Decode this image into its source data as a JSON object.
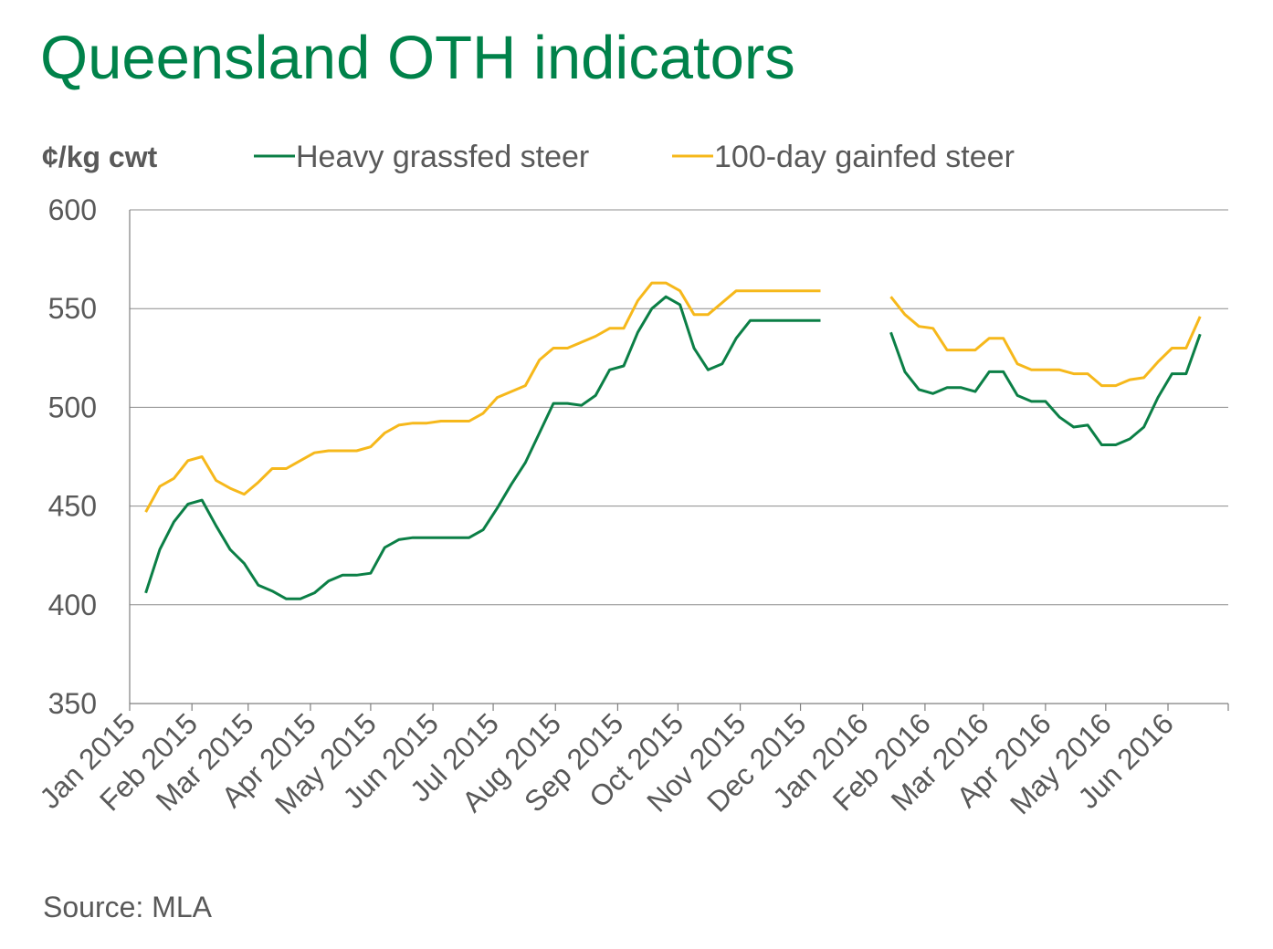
{
  "title": "Queensland OTH indicators",
  "source": "Source: MLA",
  "chart_data": {
    "type": "line",
    "ylabel": "¢/kg cwt",
    "ylim": [
      350,
      600
    ],
    "yticks": [
      350,
      400,
      450,
      500,
      550,
      600
    ],
    "grid": true,
    "legend_position": "top",
    "x_tick_labels": [
      "Jan 2015",
      "Feb 2015",
      "Mar 2015",
      "Apr 2015",
      "May 2015",
      "Jun 2015",
      "Jul 2015",
      "Aug 2015",
      "Sep 2015",
      "Oct 2015",
      "Nov 2015",
      "Dec 2015",
      "Jan 2016",
      "Feb 2016",
      "Mar 2016",
      "Apr 2016",
      "May 2016",
      "Jun 2016"
    ],
    "x_start": "2015-01",
    "x_end": "2016-06",
    "series": [
      {
        "name": "Heavy grassfed steer",
        "color": "#0b7f46",
        "points": [
          [
            "2015-01-09",
            406
          ],
          [
            "2015-01-16",
            428
          ],
          [
            "2015-01-23",
            442
          ],
          [
            "2015-01-30",
            451
          ],
          [
            "2015-02-06",
            453
          ],
          [
            "2015-02-13",
            440
          ],
          [
            "2015-02-20",
            428
          ],
          [
            "2015-02-27",
            421
          ],
          [
            "2015-03-06",
            410
          ],
          [
            "2015-03-13",
            407
          ],
          [
            "2015-03-20",
            403
          ],
          [
            "2015-03-27",
            403
          ],
          [
            "2015-04-03",
            406
          ],
          [
            "2015-04-10",
            412
          ],
          [
            "2015-04-17",
            415
          ],
          [
            "2015-04-24",
            415
          ],
          [
            "2015-05-01",
            416
          ],
          [
            "2015-05-08",
            429
          ],
          [
            "2015-05-15",
            433
          ],
          [
            "2015-05-22",
            434
          ],
          [
            "2015-05-29",
            434
          ],
          [
            "2015-06-05",
            434
          ],
          [
            "2015-06-12",
            434
          ],
          [
            "2015-06-19",
            434
          ],
          [
            "2015-06-26",
            438
          ],
          [
            "2015-07-03",
            449
          ],
          [
            "2015-07-10",
            461
          ],
          [
            "2015-07-17",
            472
          ],
          [
            "2015-07-24",
            487
          ],
          [
            "2015-07-31",
            502
          ],
          [
            "2015-08-07",
            502
          ],
          [
            "2015-08-14",
            501
          ],
          [
            "2015-08-21",
            506
          ],
          [
            "2015-08-28",
            519
          ],
          [
            "2015-09-04",
            521
          ],
          [
            "2015-09-11",
            538
          ],
          [
            "2015-09-18",
            550
          ],
          [
            "2015-09-25",
            556
          ],
          [
            "2015-10-02",
            552
          ],
          [
            "2015-10-09",
            530
          ],
          [
            "2015-10-16",
            519
          ],
          [
            "2015-10-23",
            522
          ],
          [
            "2015-10-30",
            535
          ],
          [
            "2015-11-06",
            544
          ],
          [
            "2015-11-13",
            544
          ],
          [
            "2015-11-20",
            544
          ],
          [
            "2015-11-27",
            544
          ],
          [
            "2015-12-04",
            544
          ],
          [
            "2015-12-11",
            544
          ],
          null,
          [
            "2016-01-15",
            538
          ],
          [
            "2016-01-22",
            518
          ],
          [
            "2016-01-29",
            509
          ],
          [
            "2016-02-05",
            507
          ],
          [
            "2016-02-12",
            510
          ],
          [
            "2016-02-19",
            510
          ],
          [
            "2016-02-26",
            508
          ],
          [
            "2016-03-04",
            518
          ],
          [
            "2016-03-11",
            518
          ],
          [
            "2016-03-18",
            506
          ],
          [
            "2016-03-25",
            503
          ],
          [
            "2016-04-01",
            503
          ],
          [
            "2016-04-08",
            495
          ],
          [
            "2016-04-15",
            490
          ],
          [
            "2016-04-22",
            491
          ],
          [
            "2016-04-29",
            481
          ],
          [
            "2016-05-06",
            481
          ],
          [
            "2016-05-13",
            484
          ],
          [
            "2016-05-20",
            490
          ],
          [
            "2016-05-27",
            505
          ],
          [
            "2016-06-03",
            517
          ],
          [
            "2016-06-10",
            517
          ],
          [
            "2016-06-17",
            537
          ]
        ]
      },
      {
        "name": "100-day gainfed steer",
        "color": "#f6b81b",
        "points": [
          [
            "2015-01-09",
            447
          ],
          [
            "2015-01-16",
            460
          ],
          [
            "2015-01-23",
            464
          ],
          [
            "2015-01-30",
            473
          ],
          [
            "2015-02-06",
            475
          ],
          [
            "2015-02-13",
            463
          ],
          [
            "2015-02-20",
            459
          ],
          [
            "2015-02-27",
            456
          ],
          [
            "2015-03-06",
            462
          ],
          [
            "2015-03-13",
            469
          ],
          [
            "2015-03-20",
            469
          ],
          [
            "2015-03-27",
            473
          ],
          [
            "2015-04-03",
            477
          ],
          [
            "2015-04-10",
            478
          ],
          [
            "2015-04-17",
            478
          ],
          [
            "2015-04-24",
            478
          ],
          [
            "2015-05-01",
            480
          ],
          [
            "2015-05-08",
            487
          ],
          [
            "2015-05-15",
            491
          ],
          [
            "2015-05-22",
            492
          ],
          [
            "2015-05-29",
            492
          ],
          [
            "2015-06-05",
            493
          ],
          [
            "2015-06-12",
            493
          ],
          [
            "2015-06-19",
            493
          ],
          [
            "2015-06-26",
            497
          ],
          [
            "2015-07-03",
            505
          ],
          [
            "2015-07-10",
            508
          ],
          [
            "2015-07-17",
            511
          ],
          [
            "2015-07-24",
            524
          ],
          [
            "2015-07-31",
            530
          ],
          [
            "2015-08-07",
            530
          ],
          [
            "2015-08-14",
            533
          ],
          [
            "2015-08-21",
            536
          ],
          [
            "2015-08-28",
            540
          ],
          [
            "2015-09-04",
            540
          ],
          [
            "2015-09-11",
            554
          ],
          [
            "2015-09-18",
            563
          ],
          [
            "2015-09-25",
            563
          ],
          [
            "2015-10-02",
            559
          ],
          [
            "2015-10-09",
            547
          ],
          [
            "2015-10-16",
            547
          ],
          [
            "2015-10-23",
            553
          ],
          [
            "2015-10-30",
            559
          ],
          [
            "2015-11-06",
            559
          ],
          [
            "2015-11-13",
            559
          ],
          [
            "2015-11-20",
            559
          ],
          [
            "2015-11-27",
            559
          ],
          [
            "2015-12-04",
            559
          ],
          [
            "2015-12-11",
            559
          ],
          null,
          [
            "2016-01-15",
            556
          ],
          [
            "2016-01-22",
            547
          ],
          [
            "2016-01-29",
            541
          ],
          [
            "2016-02-05",
            540
          ],
          [
            "2016-02-12",
            529
          ],
          [
            "2016-02-19",
            529
          ],
          [
            "2016-02-26",
            529
          ],
          [
            "2016-03-04",
            535
          ],
          [
            "2016-03-11",
            535
          ],
          [
            "2016-03-18",
            522
          ],
          [
            "2016-03-25",
            519
          ],
          [
            "2016-04-01",
            519
          ],
          [
            "2016-04-08",
            519
          ],
          [
            "2016-04-15",
            517
          ],
          [
            "2016-04-22",
            517
          ],
          [
            "2016-04-29",
            511
          ],
          [
            "2016-05-06",
            511
          ],
          [
            "2016-05-13",
            514
          ],
          [
            "2016-05-20",
            515
          ],
          [
            "2016-05-27",
            523
          ],
          [
            "2016-06-03",
            530
          ],
          [
            "2016-06-10",
            530
          ],
          [
            "2016-06-17",
            546
          ]
        ]
      }
    ]
  },
  "colors": {
    "title": "#00824a",
    "text": "#595959",
    "axis": "#7f7f7f"
  }
}
